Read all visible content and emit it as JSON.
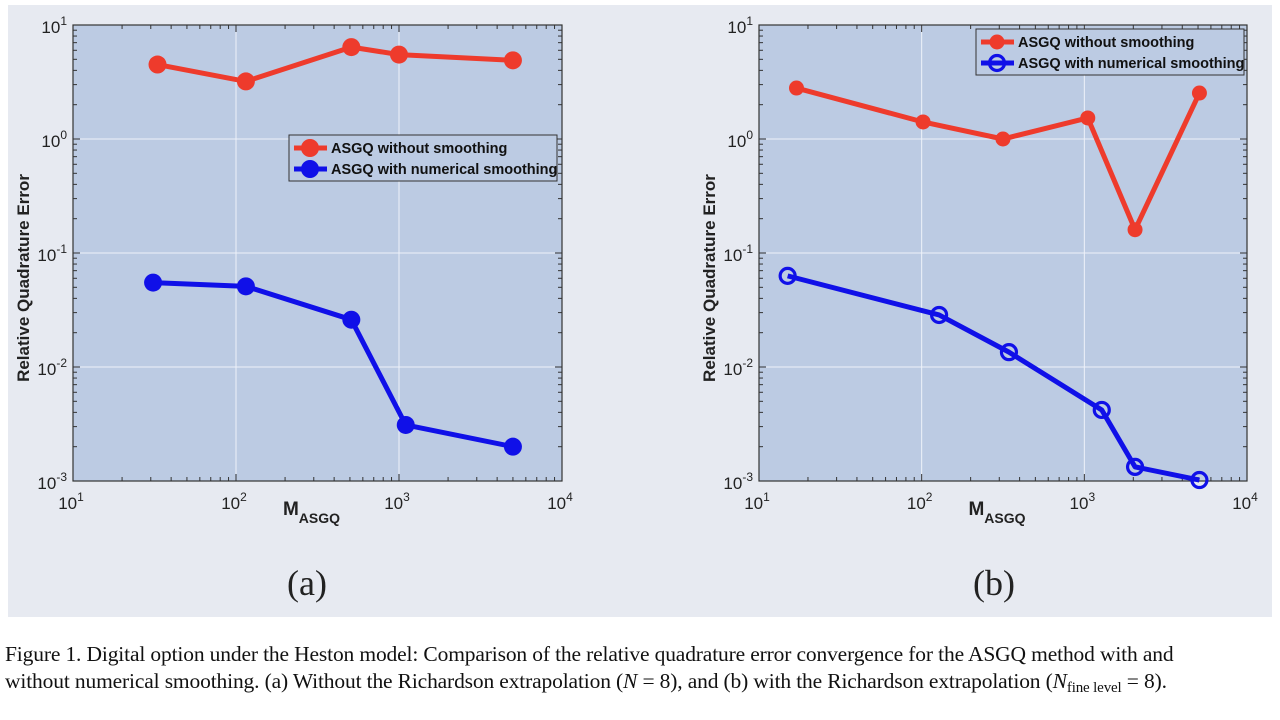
{
  "figure": {
    "subplot_labels": [
      "(a)",
      "(b)"
    ],
    "caption": {
      "line1": "Figure 1.  Digital option under the Heston model: Comparison of the relative quadrature error convergence for the ASGQ method with and",
      "line2_a": "without numerical smoothing. (a) Without the Richardson extrapolation (",
      "line2_N1": "N",
      "line2_b": " = 8), and (b) with the Richardson extrapolation (",
      "line2_N2": "N",
      "line2_sub": "fine level",
      "line2_c": " = 8)."
    }
  },
  "colors": {
    "plot_background": "#bccbe3",
    "red_series": "#ee3b2c",
    "blue_series": "#1010e8",
    "grid": "#eef2fa"
  },
  "chart_data": [
    {
      "type": "line",
      "xscale": "log",
      "yscale": "log",
      "xlabel": "M",
      "xlabel_sub": "ASGQ",
      "ylabel": "Relative Quadrature Error",
      "xlim": [
        10,
        10000
      ],
      "ylim": [
        0.001,
        10
      ],
      "xticks": [
        {
          "base": "10",
          "exp": "1",
          "value": 10
        },
        {
          "base": "10",
          "exp": "2",
          "value": 100
        },
        {
          "base": "10",
          "exp": "3",
          "value": 1000
        },
        {
          "base": "10",
          "exp": "4",
          "value": 10000
        }
      ],
      "yticks": [
        {
          "base": "10",
          "exp": "-3",
          "value": 0.001
        },
        {
          "base": "10",
          "exp": "-2",
          "value": 0.01
        },
        {
          "base": "10",
          "exp": "-1",
          "value": 0.1
        },
        {
          "base": "10",
          "exp": "0",
          "value": 1
        },
        {
          "base": "10",
          "exp": "1",
          "value": 10
        }
      ],
      "grid": true,
      "legend_placement": "center-right",
      "series": [
        {
          "name": "ASGQ without smoothing",
          "color": "#ee3b2c",
          "marker": "filled-circle",
          "x": [
            33,
            115,
            510,
            1000,
            5000
          ],
          "y": [
            4.5,
            3.2,
            6.4,
            5.5,
            4.9
          ]
        },
        {
          "name": "ASGQ with numerical smoothing",
          "color": "#1010e8",
          "marker": "filled-circle",
          "x": [
            31,
            115,
            510,
            1100,
            5000
          ],
          "y": [
            0.055,
            0.051,
            0.026,
            0.0031,
            0.002
          ]
        }
      ]
    },
    {
      "type": "line",
      "xscale": "log",
      "yscale": "log",
      "xlabel": "M",
      "xlabel_sub": "ASGQ",
      "ylabel": "Relative Quadrature Error",
      "xlim": [
        10,
        10000
      ],
      "ylim": [
        0.001,
        10
      ],
      "xticks": [
        {
          "base": "10",
          "exp": "1",
          "value": 10
        },
        {
          "base": "10",
          "exp": "2",
          "value": 100
        },
        {
          "base": "10",
          "exp": "3",
          "value": 1000
        },
        {
          "base": "10",
          "exp": "4",
          "value": 10000
        }
      ],
      "yticks": [
        {
          "base": "10",
          "exp": "-3",
          "value": 0.001
        },
        {
          "base": "10",
          "exp": "-2",
          "value": 0.01
        },
        {
          "base": "10",
          "exp": "-1",
          "value": 0.1
        },
        {
          "base": "10",
          "exp": "0",
          "value": 1
        },
        {
          "base": "10",
          "exp": "1",
          "value": 10
        }
      ],
      "grid": true,
      "legend_placement": "top-right",
      "series": [
        {
          "name": "ASGQ without smoothing",
          "color": "#ee3b2c",
          "marker": "filled-circle",
          "x": [
            17,
            102,
            316,
            1050,
            2050,
            5100
          ],
          "y": [
            2.8,
            1.41,
            1.0,
            1.53,
            0.16,
            2.53
          ]
        },
        {
          "name": "ASGQ with numerical smoothing",
          "color": "#1010e8",
          "marker": "open-circle",
          "x": [
            15,
            128,
            344,
            1280,
            2050,
            5100
          ],
          "y": [
            0.063,
            0.0286,
            0.0135,
            0.0042,
            0.00133,
            0.00102
          ]
        }
      ]
    }
  ]
}
